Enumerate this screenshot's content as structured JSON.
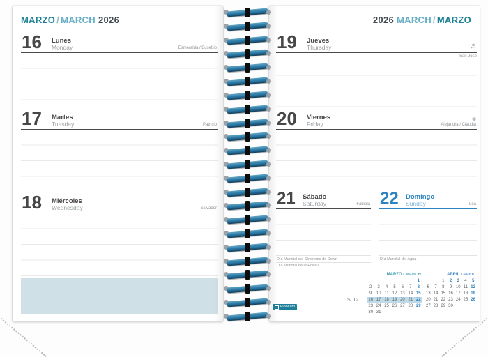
{
  "brand": {
    "label": "Finocam"
  },
  "header_left": {
    "month_es": "MARZO",
    "separator": "/",
    "month_en": "MARCH",
    "year": "2026"
  },
  "header_right": {
    "year": "2026",
    "month_en": "MARCH",
    "separator": "/",
    "month_es": "MARZO"
  },
  "days": [
    {
      "id": "mon",
      "number": "16",
      "name_es": "Lunes",
      "name_en": "Monday",
      "saints": "Esmeralda / Eusebio"
    },
    {
      "id": "tue",
      "number": "17",
      "name_es": "Martes",
      "name_en": "Tuesday",
      "saints": "Patricio"
    },
    {
      "id": "wed",
      "number": "18",
      "name_es": "Miércoles",
      "name_en": "Wednesday",
      "saints": "Salvador"
    },
    {
      "id": "thu",
      "number": "19",
      "name_es": "Jueves",
      "name_en": "Thursday",
      "saints": "San José",
      "icon": "person-icon"
    },
    {
      "id": "fri",
      "number": "20",
      "name_es": "Viernes",
      "name_en": "Friday",
      "saints": "Alejandra / Claudia",
      "icon": "flower-icon"
    },
    {
      "id": "sat",
      "number": "21",
      "name_es": "Sábado",
      "name_en": "Saturday",
      "saints": "Fabiola",
      "observances": [
        "Día Mundial del Síndrome de Down",
        "Día Mundial de la Poesía"
      ]
    },
    {
      "id": "sun",
      "number": "22",
      "name_es": "Domingo",
      "name_en": "Sunday",
      "saints": "Lea",
      "observances": [
        "Día Mundial del Agua"
      ]
    }
  ],
  "week_label": "S. 12",
  "mini_calendars": [
    {
      "title_es": "MARZO",
      "title_sep": " / ",
      "title_en": "MARCH",
      "weeks": [
        [
          "",
          "",
          "",
          "",
          "",
          "",
          "1"
        ],
        [
          "2",
          "3",
          "4",
          "5",
          "6",
          "7",
          "8"
        ],
        [
          "9",
          "10",
          "11",
          "12",
          "13",
          "14",
          "15"
        ],
        [
          "16",
          "17",
          "18",
          "19",
          "20",
          "21",
          "22"
        ],
        [
          "23",
          "24",
          "25",
          "26",
          "27",
          "28",
          "29"
        ],
        [
          "30",
          "31",
          "",
          "",
          "",
          "",
          ""
        ]
      ],
      "accent_days": [
        "1",
        "8",
        "15",
        "22",
        "29"
      ],
      "highlight_week": 3
    },
    {
      "title_es": "ABRIL",
      "title_sep": " / ",
      "title_en": "APRIL",
      "weeks": [
        [
          "",
          "",
          "1",
          "2",
          "3",
          "4",
          "5"
        ],
        [
          "6",
          "7",
          "8",
          "9",
          "10",
          "11",
          "12"
        ],
        [
          "13",
          "14",
          "15",
          "16",
          "17",
          "18",
          "19"
        ],
        [
          "20",
          "21",
          "22",
          "23",
          "24",
          "25",
          "26"
        ],
        [
          "27",
          "28",
          "29",
          "30",
          "",
          "",
          ""
        ]
      ],
      "accent_days": [
        "2",
        "3",
        "5",
        "12",
        "19",
        "26"
      ],
      "highlight_week": -1
    }
  ],
  "colors": {
    "teal": "#1b7f96",
    "light_blue": "#66aec6",
    "dark_text": "#3f4850",
    "accent_blue": "#2b84c0",
    "week_highlight": "#bfdbe7",
    "notes_box": "#cfe0e6",
    "spiral_blue": "#2674a1",
    "brand_teal": "#1e7f9b"
  },
  "spiral": {
    "loop_count": 23
  }
}
